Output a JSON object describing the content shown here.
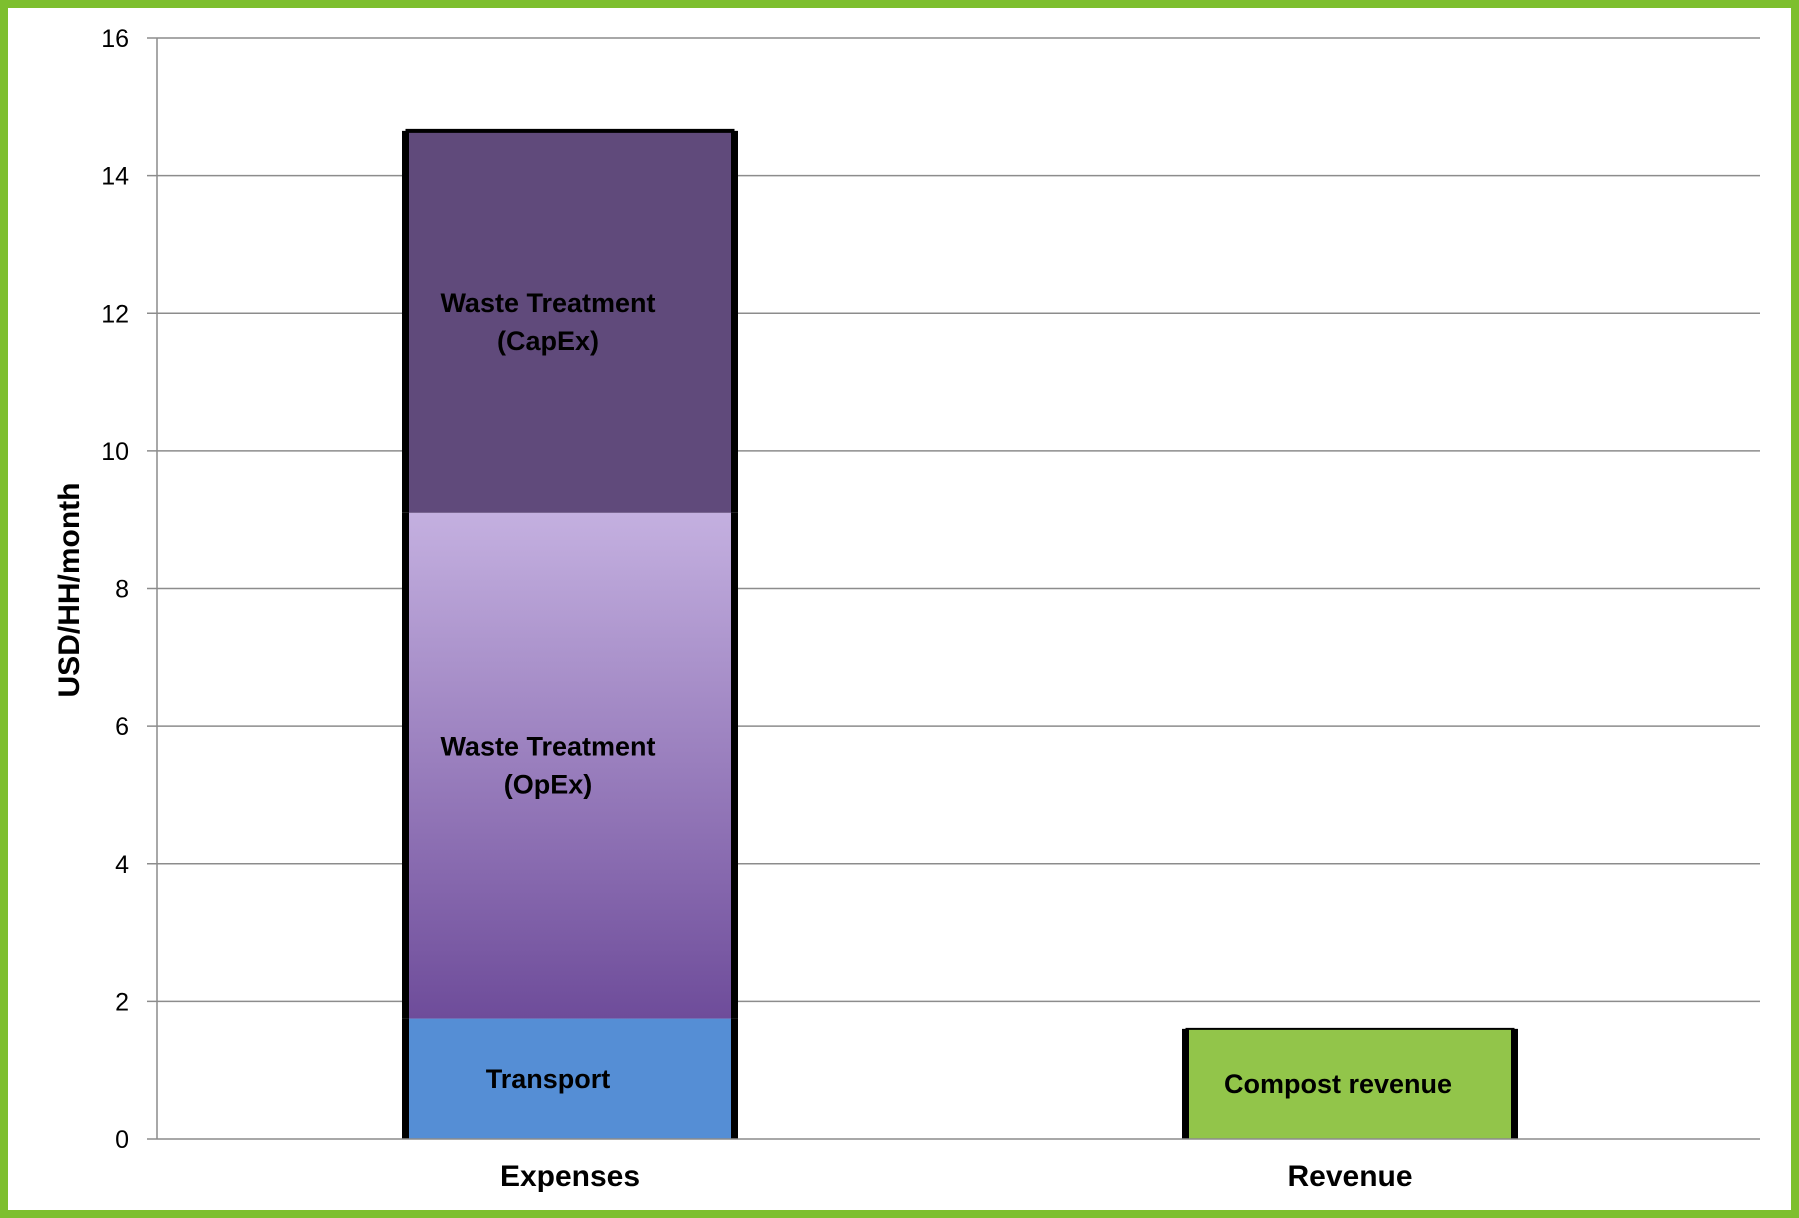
{
  "chart_data": {
    "type": "bar",
    "stacked": true,
    "categories": [
      "Expenses",
      "Revenue"
    ],
    "ylabel": "USD/HH/month",
    "xlabel": "",
    "ylim": [
      0,
      16
    ],
    "yticks": [
      "0",
      "2",
      "4",
      "6",
      "8",
      "10",
      "12",
      "14",
      "16"
    ],
    "grid": true,
    "series": [
      {
        "name": "Transport",
        "category": "Expenses",
        "label_lines": [
          "Transport"
        ],
        "base": 0,
        "value": 1.75,
        "color": "#558ED5"
      },
      {
        "name": "Waste Treatment (OpEx)",
        "category": "Expenses",
        "label_lines": [
          "Waste Treatment",
          "(OpEx)"
        ],
        "base": 1.75,
        "value": 7.35,
        "color": "#9B82C0",
        "gradient": [
          "#C4B0E0",
          "#6E4C9A"
        ]
      },
      {
        "name": "Waste Treatment (CapEx)",
        "category": "Expenses",
        "label_lines": [
          "Waste Treatment",
          "(CapEx)"
        ],
        "base": 9.1,
        "value": 5.55,
        "color": "#604A7B"
      },
      {
        "name": "Compost revenue",
        "category": "Revenue",
        "label_lines": [
          "Compost revenue"
        ],
        "base": 0,
        "value": 1.6,
        "color": "#92C54A"
      }
    ],
    "colors": {
      "frame": "#7DBF2E",
      "grid": "#8C8C8C",
      "axis": "#8C8C8C",
      "bar_outline": "#000000"
    }
  }
}
